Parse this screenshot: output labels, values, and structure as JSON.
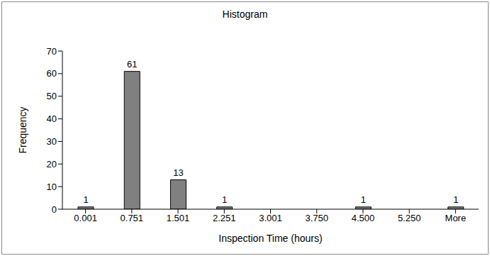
{
  "chart_data": {
    "type": "bar",
    "title": "Histogram",
    "x_label": "Inspection Time (hours)",
    "y_label": "Frequency",
    "categories": [
      "0.001",
      "0.751",
      "1.501",
      "2.251",
      "3.001",
      "3.750",
      "4.500",
      "5.250",
      "More"
    ],
    "values": [
      1,
      61,
      13,
      1,
      0,
      0,
      1,
      0,
      1
    ],
    "color": "#808080",
    "ylim": [
      0,
      70
    ],
    "yticks": [
      0,
      10,
      20,
      30,
      40,
      50,
      60,
      70
    ],
    "grid": false,
    "data_labels": true
  }
}
